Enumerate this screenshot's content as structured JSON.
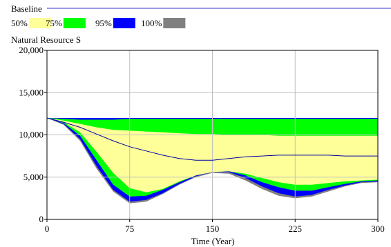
{
  "chart_data": {
    "type": "area",
    "title": "Baseline",
    "subtitle": "Natural Resource S",
    "xlabel": "Time (Year)",
    "ylabel": "",
    "xlim": [
      0,
      300
    ],
    "ylim": [
      0,
      20000
    ],
    "x_ticks": [
      "0",
      "75",
      "150",
      "225",
      "300"
    ],
    "y_ticks": [
      "0",
      "5,000",
      "10,000",
      "15,000",
      "20,000"
    ],
    "x_tick_values": [
      0,
      75,
      150,
      225,
      300
    ],
    "y_tick_values": [
      0,
      5000,
      10000,
      15000,
      20000
    ],
    "grid": true,
    "legend_position": "top",
    "legend": [
      {
        "label": "50%",
        "color": "#ffff99"
      },
      {
        "label": "75%",
        "color": "#00ff00"
      },
      {
        "label": "95%",
        "color": "#0000ff"
      },
      {
        "label": "100%",
        "color": "#808080"
      }
    ],
    "x": [
      0,
      15,
      30,
      45,
      60,
      75,
      90,
      105,
      120,
      135,
      150,
      165,
      180,
      195,
      210,
      225,
      240,
      255,
      270,
      285,
      300
    ],
    "series": [
      {
        "name": "100%",
        "color": "#808080",
        "lower": [
          12000,
          11200,
          9300,
          6000,
          3300,
          1900,
          2100,
          3000,
          4100,
          5000,
          5500,
          5400,
          4600,
          3600,
          2800,
          2500,
          2700,
          3300,
          3900,
          4300,
          4400
        ],
        "upper": [
          12000,
          12000,
          12000,
          12000,
          12000,
          12000,
          12000,
          12000,
          12000,
          12000,
          12000,
          12000,
          12000,
          12000,
          12000,
          12000,
          12000,
          12000,
          12000,
          12000,
          12000
        ]
      },
      {
        "name": "95%",
        "color": "#0000ff",
        "lower": [
          12000,
          11300,
          9500,
          6300,
          3500,
          2100,
          2300,
          3100,
          4200,
          5100,
          5600,
          5600,
          4900,
          3900,
          3100,
          2700,
          2900,
          3500,
          4000,
          4400,
          4500
        ],
        "upper": [
          12000,
          12000,
          12000,
          12000,
          12000,
          12000,
          12000,
          12000,
          12000,
          12000,
          12000,
          12000,
          12000,
          12000,
          12000,
          12000,
          12000,
          12000,
          12000,
          12000,
          12000
        ]
      },
      {
        "name": "75%",
        "color": "#00ff00",
        "lower": [
          12000,
          11400,
          9900,
          7000,
          4100,
          2700,
          2800,
          3500,
          4400,
          5200,
          5600,
          5700,
          5200,
          4400,
          3800,
          3400,
          3400,
          3800,
          4200,
          4500,
          4600
        ],
        "upper": [
          12000,
          11900,
          11800,
          11800,
          11800,
          11900,
          11900,
          11900,
          11900,
          11900,
          11900,
          11900,
          11900,
          11900,
          11900,
          11900,
          11900,
          11900,
          11900,
          11900,
          11900
        ]
      },
      {
        "name": "50%",
        "color": "#ffff99",
        "lower": [
          12000,
          11500,
          10300,
          8000,
          5500,
          3700,
          3200,
          3600,
          4500,
          5200,
          5600,
          5700,
          5400,
          4900,
          4400,
          4100,
          4100,
          4300,
          4500,
          4600,
          4700
        ],
        "upper": [
          12000,
          11700,
          11300,
          10900,
          10600,
          10500,
          10400,
          10300,
          10200,
          10100,
          10100,
          10000,
          10000,
          10000,
          9900,
          9900,
          9900,
          9900,
          9900,
          9900,
          9900
        ]
      }
    ],
    "median": [
      12000,
      11500,
      10900,
      10100,
      9300,
      8600,
      8100,
      7600,
      7200,
      7000,
      7000,
      7200,
      7400,
      7500,
      7600,
      7600,
      7600,
      7600,
      7500,
      7500,
      7500
    ]
  }
}
